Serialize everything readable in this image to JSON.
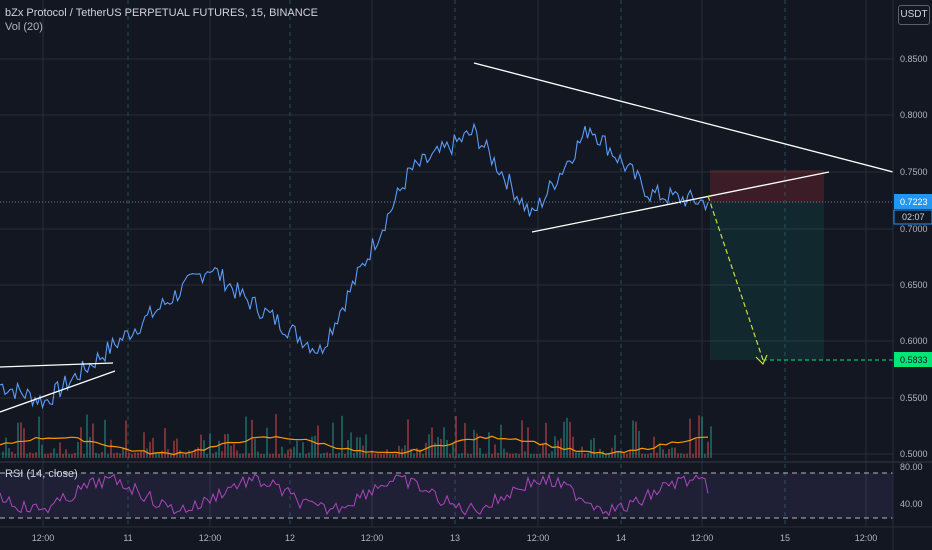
{
  "header": {
    "symbol": "bZx Protocol / TetherUS PERPETUAL FUTURES, 15, BINANCE",
    "volume": "Vol (20)",
    "currency": "USDT"
  },
  "rsi": {
    "label": "RSI (14, close)",
    "ticks": [
      "80.00",
      "40.00"
    ]
  },
  "price_axis": {
    "ticks": [
      "0.8500",
      "0.8000",
      "0.7500",
      "0.6500",
      "0.6000",
      "0.5500",
      "0.5000"
    ],
    "partial_tick": "0.7000",
    "current_price": "0.7223",
    "countdown": "02:07",
    "target_price": "0.5833"
  },
  "time_axis": {
    "ticks": [
      "12:00",
      "11",
      "12:00",
      "12",
      "12:00",
      "13",
      "12:00",
      "14",
      "12:00",
      "15",
      "12:00"
    ]
  },
  "colors": {
    "background": "#131722",
    "price_line": "#5b9cf6",
    "volume_ma": "#ff9800",
    "rsi": "#ab47bc",
    "current_price_label": "#2196f3",
    "target_label": "#00e676",
    "arrow": "#cddc39"
  },
  "chart_data": {
    "type": "line",
    "title": "bZx Protocol / TetherUS PERPETUAL FUTURES, 15, BINANCE",
    "xlabel": "",
    "ylabel": "",
    "x": [
      "10 12:00",
      "11",
      "11 12:00",
      "12",
      "12 12:00",
      "13",
      "13 12:00",
      "14",
      "14 12:00",
      "15",
      "15 12:00"
    ],
    "ylim": [
      0.495,
      0.86
    ],
    "series": [
      {
        "values": [
          0.56,
          0.545,
          0.665,
          0.64,
          0.59,
          0.75,
          0.785,
          0.71,
          0.79,
          0.73,
          0.7223
        ]
      }
    ],
    "annotations": {
      "current_price": 0.7223,
      "target_price": 0.5833,
      "triangle": {
        "upper_start": 0.845,
        "lower_start": 0.695,
        "apex": 0.75
      }
    },
    "rsi": {
      "ticks": [
        80.0,
        40.0
      ]
    },
    "legend": "none",
    "grid": true
  }
}
